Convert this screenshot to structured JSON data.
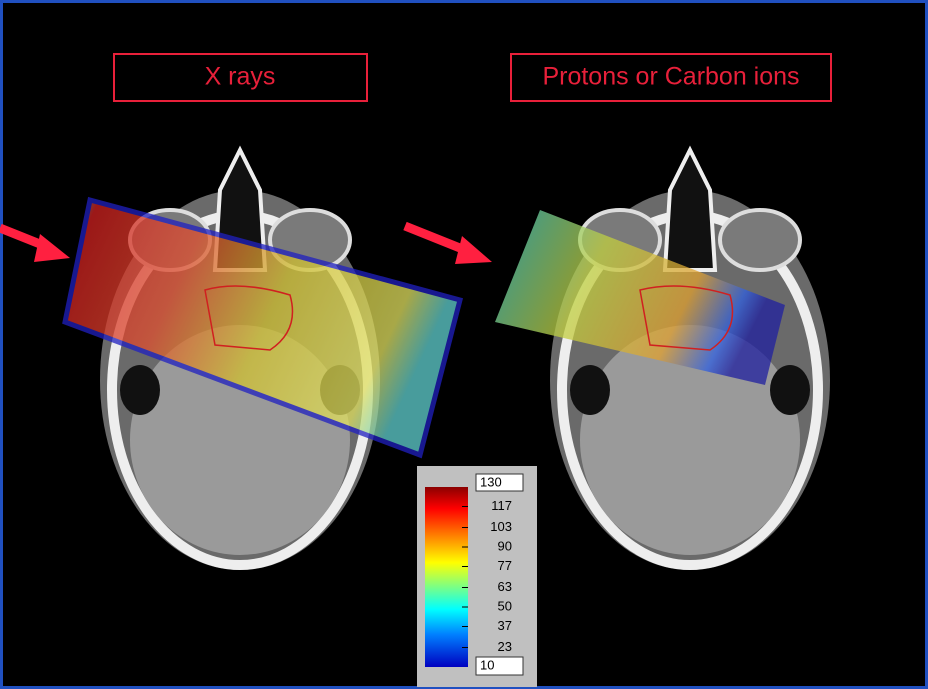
{
  "panels": [
    {
      "title": "X rays"
    },
    {
      "title": "Protons or Carbon ions"
    }
  ],
  "colorbar": {
    "max": 130,
    "min": 10,
    "ticks": [
      117,
      103,
      90,
      77,
      63,
      50,
      37,
      23
    ]
  }
}
